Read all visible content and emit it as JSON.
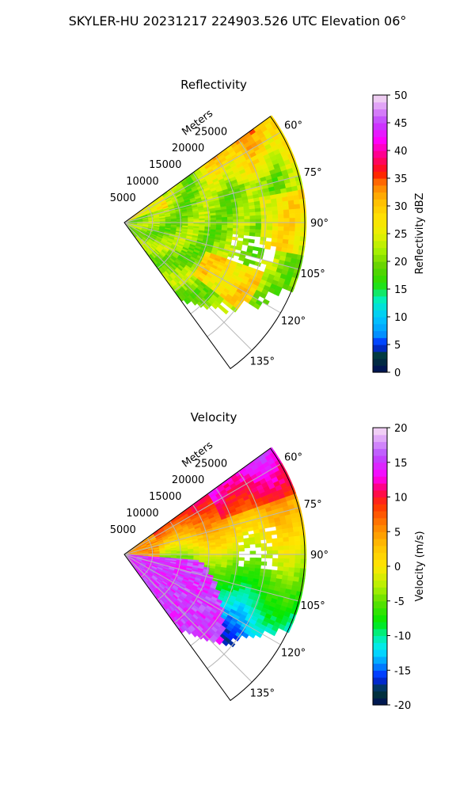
{
  "figure": {
    "suptitle": "SKYLER-HU  20231217  224903.526 UTC Elevation 06°"
  },
  "chart_data": [
    {
      "type": "heatmap",
      "subtype": "polar-sector-ppi",
      "title": "Reflectivity",
      "radial_label": "Meters",
      "radial_ticks": [
        5000,
        10000,
        15000,
        20000,
        25000
      ],
      "radial_range": [
        0,
        32000
      ],
      "azimuth_range_deg": [
        54,
        144
      ],
      "azimuth_ticks_deg": [
        60,
        75,
        90,
        105,
        120,
        135
      ],
      "grid": true,
      "colorbar": {
        "label": "Reflectivity dBZ",
        "min": 0,
        "max": 50,
        "ticks": [
          0,
          5,
          10,
          15,
          20,
          25,
          30,
          35,
          40,
          45,
          50
        ],
        "colormap": "NWS reflectivity",
        "stops": [
          [
            0,
            "#000c5a"
          ],
          [
            3,
            "#003c34"
          ],
          [
            5,
            "#0022ff"
          ],
          [
            7,
            "#0096ff"
          ],
          [
            10,
            "#00c8ff"
          ],
          [
            13,
            "#00f0c0"
          ],
          [
            16,
            "#24e000"
          ],
          [
            19,
            "#60d000"
          ],
          [
            22,
            "#a8f000"
          ],
          [
            25,
            "#e8f000"
          ],
          [
            28,
            "#ffe000"
          ],
          [
            31,
            "#ffbc00"
          ],
          [
            34,
            "#ff7a00"
          ],
          [
            36,
            "#ff1500"
          ],
          [
            39,
            "#ff0080"
          ],
          [
            42,
            "#ff00ff"
          ],
          [
            45,
            "#c040ff"
          ],
          [
            50,
            "#f4e0f0"
          ]
        ]
      }
    },
    {
      "type": "heatmap",
      "subtype": "polar-sector-ppi",
      "title": "Velocity",
      "radial_label": "Meters",
      "radial_ticks": [
        5000,
        10000,
        15000,
        20000,
        25000
      ],
      "radial_range": [
        0,
        32000
      ],
      "azimuth_range_deg": [
        54,
        144
      ],
      "azimuth_ticks_deg": [
        60,
        75,
        90,
        105,
        120,
        135
      ],
      "grid": true,
      "colorbar": {
        "label": "Velocity (m/s)",
        "min": -20,
        "max": 20,
        "ticks": [
          -20,
          -15,
          -10,
          -5,
          0,
          5,
          10,
          15,
          20
        ],
        "colormap": "velocity",
        "stops": [
          [
            -20,
            "#000c5a"
          ],
          [
            -18,
            "#003c34"
          ],
          [
            -16,
            "#0022ff"
          ],
          [
            -14,
            "#0096ff"
          ],
          [
            -12,
            "#00e8ff"
          ],
          [
            -10,
            "#00f0a0"
          ],
          [
            -8,
            "#00e800"
          ],
          [
            -5,
            "#60e000"
          ],
          [
            -3,
            "#b0f000"
          ],
          [
            0,
            "#ffe800"
          ],
          [
            3,
            "#ffc000"
          ],
          [
            6,
            "#ff8000"
          ],
          [
            9,
            "#ff3000"
          ],
          [
            11,
            "#ff0060"
          ],
          [
            13,
            "#ff00ff"
          ],
          [
            16,
            "#b84cff"
          ],
          [
            20,
            "#f8e0f4"
          ]
        ]
      }
    }
  ]
}
